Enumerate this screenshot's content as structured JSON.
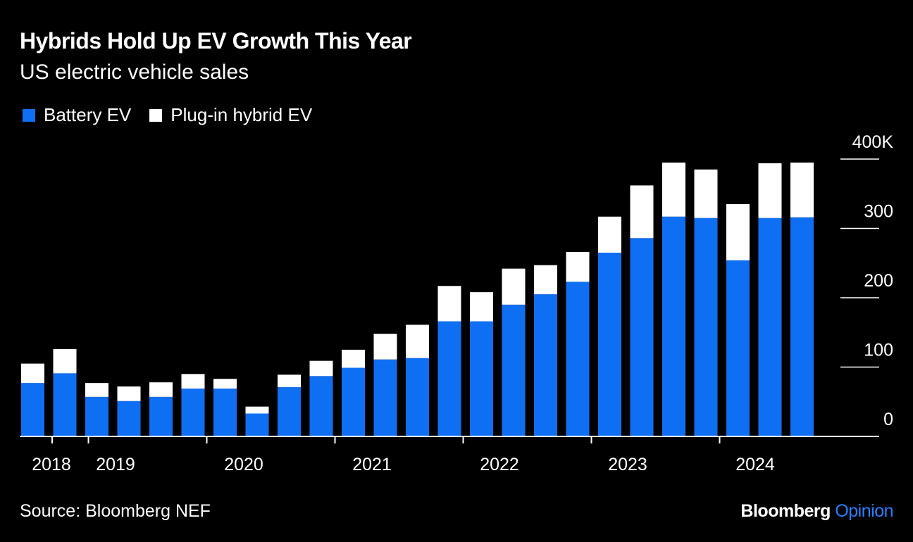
{
  "header": {
    "title": "Hybrids Hold Up EV Growth This Year",
    "subtitle": "US electric vehicle sales"
  },
  "legend": [
    {
      "label": "Battery EV",
      "color": "#0f6ff2"
    },
    {
      "label": "Plug-in hybrid EV",
      "color": "#ffffff"
    }
  ],
  "footer": {
    "source": "Source: Bloomberg NEF",
    "brand_main": "Bloomberg",
    "brand_accent": "Opinion"
  },
  "chart_data": {
    "type": "bar",
    "stacked": true,
    "ylim": [
      0,
      400
    ],
    "y_ticks": [
      "0",
      "100",
      "200",
      "300",
      "400K"
    ],
    "x_tick_labels": [
      "2018",
      "2019",
      "2020",
      "2021",
      "2022",
      "2023",
      "2024"
    ],
    "categories": [
      "2018 Q1",
      "2018 Q2",
      "2018 Q3",
      "2018 Q4",
      "2019 Q1",
      "2019 Q2",
      "2019 Q3",
      "2019 Q4",
      "2020 Q1",
      "2020 Q2",
      "2020 Q3",
      "2020 Q4",
      "2021 Q1",
      "2021 Q2",
      "2021 Q3",
      "2021 Q4",
      "2022 Q1",
      "2022 Q2",
      "2022 Q3",
      "2022 Q4",
      "2023 Q1",
      "2023 Q2",
      "2023 Q3",
      "2023 Q4",
      "2024 Q1"
    ],
    "series": [
      {
        "name": "Battery EV",
        "color": "#0f6ff2",
        "values": [
          77,
          91,
          57,
          51,
          57,
          69,
          69,
          33,
          71,
          87,
          99,
          111,
          113,
          166,
          166,
          190,
          205,
          223,
          265,
          286,
          317,
          315,
          254,
          315,
          316
        ]
      },
      {
        "name": "Plug-in hybrid EV",
        "color": "#ffffff",
        "values": [
          28,
          35,
          20,
          21,
          21,
          21,
          14,
          10,
          18,
          22,
          26,
          37,
          48,
          51,
          42,
          52,
          42,
          43,
          52,
          76,
          78,
          70,
          81,
          79,
          79
        ]
      }
    ]
  }
}
